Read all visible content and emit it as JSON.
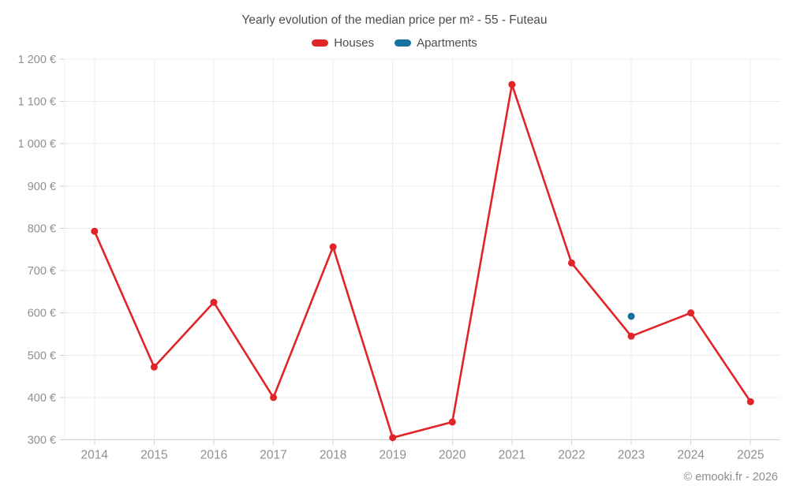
{
  "footer": {
    "copyright": "© emooki.fr - 2026"
  },
  "chart_data": {
    "type": "line",
    "title": "Yearly evolution of the median price per m² - 55 - Futeau",
    "legend_position": "top",
    "grid": true,
    "categories": [
      "2014",
      "2015",
      "2016",
      "2017",
      "2018",
      "2019",
      "2020",
      "2021",
      "2022",
      "2023",
      "2024",
      "2025"
    ],
    "series": [
      {
        "name": "Houses",
        "color": "#e02427",
        "values": [
          793,
          472,
          625,
          400,
          756,
          305,
          342,
          1140,
          718,
          545,
          600,
          390
        ]
      },
      {
        "name": "Apartments",
        "color": "#19709e",
        "values": [
          null,
          null,
          null,
          null,
          null,
          null,
          null,
          null,
          null,
          592,
          null,
          null
        ]
      }
    ],
    "xlabel": "",
    "ylabel": "",
    "ylim": [
      300,
      1200
    ],
    "y_ticks": [
      {
        "value": 300,
        "label": "300 €"
      },
      {
        "value": 400,
        "label": "400 €"
      },
      {
        "value": 500,
        "label": "500 €"
      },
      {
        "value": 600,
        "label": "600 €"
      },
      {
        "value": 700,
        "label": "700 €"
      },
      {
        "value": 800,
        "label": "800 €"
      },
      {
        "value": 900,
        "label": "900 €"
      },
      {
        "value": 1000,
        "label": "1 000 €"
      },
      {
        "value": 1100,
        "label": "1 100 €"
      },
      {
        "value": 1200,
        "label": "1 200 €"
      }
    ],
    "colors": {
      "grid": "#ececec",
      "axis": "#cfcfcf",
      "tick_text": "#8f8f8f",
      "heading_text": "#4d4d4d"
    }
  }
}
